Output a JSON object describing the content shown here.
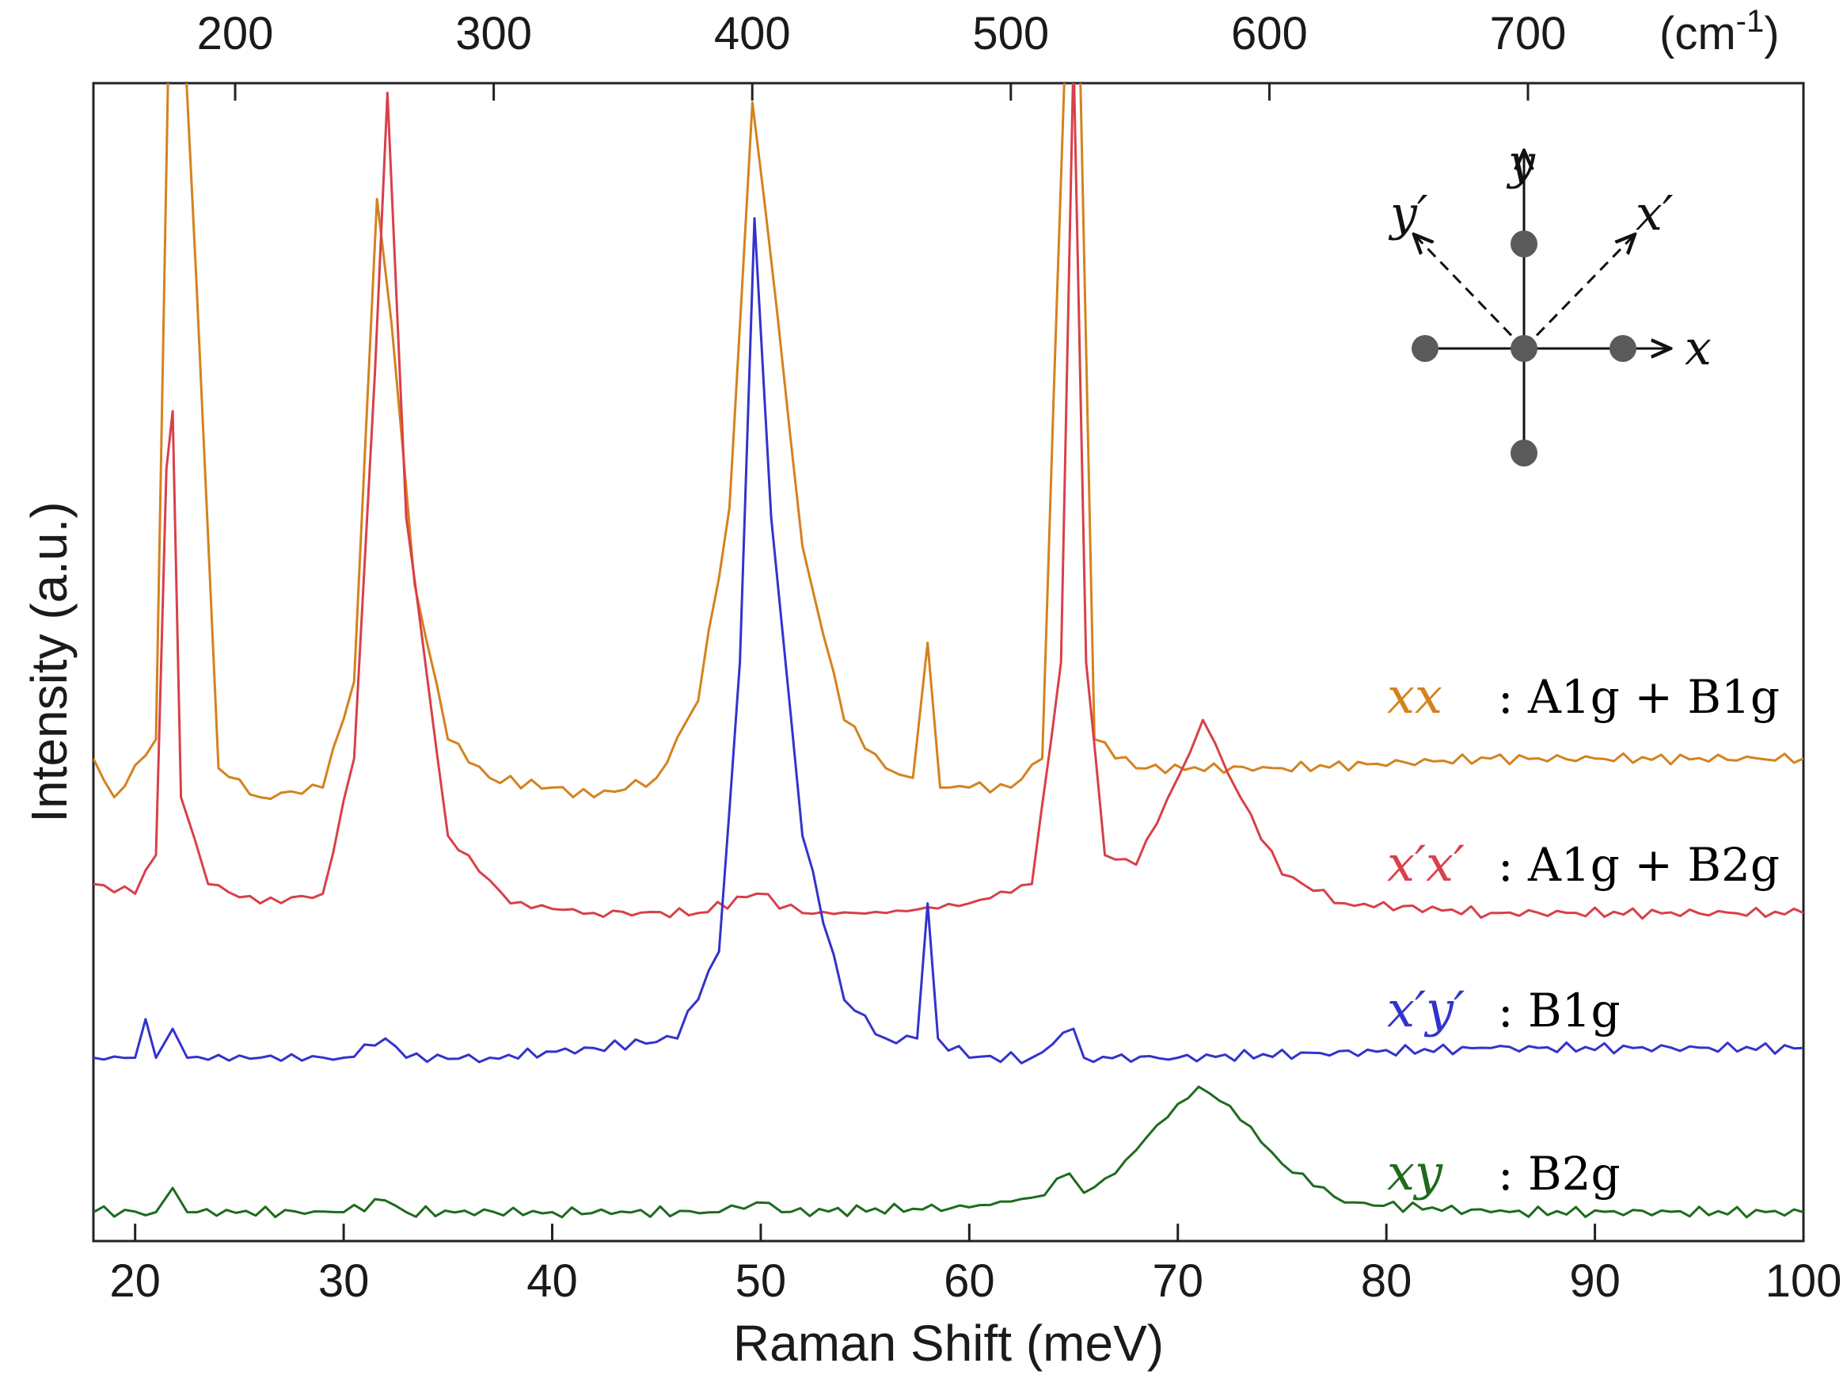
{
  "chart_data": {
    "type": "line",
    "xlabel": "Raman Shift (meV)",
    "ylabel": "Intensity (a.u.)",
    "xlim": [
      18,
      100
    ],
    "ylim": [
      0,
      12
    ],
    "x_ticks": [
      20,
      30,
      40,
      50,
      60,
      70,
      80,
      90,
      100
    ],
    "top_axis": {
      "unit_label": "(cm",
      "unit_exp": "-1",
      "unit_close": ")",
      "ticks": [
        200,
        300,
        400,
        500,
        600,
        700
      ],
      "conversion_mev_per_cm": 0.123984
    },
    "series": [
      {
        "id": "xx",
        "label_math": "xx",
        "symmetry": ": A1g + B1g",
        "color": "#D4821E",
        "baseline": 4.8,
        "x": [
          18,
          19,
          21,
          21.6,
          22.4,
          24,
          26,
          29,
          30.5,
          31.6,
          32.3,
          33.4,
          35,
          37,
          40,
          42,
          45,
          47,
          48.5,
          49.6,
          50.8,
          52,
          54,
          56,
          57.3,
          58,
          58.6,
          60,
          62,
          63.5,
          64.6,
          65.3,
          66,
          68,
          75,
          85,
          100
        ],
        "y": [
          5.0,
          4.6,
          5.2,
          12.5,
          12.5,
          4.9,
          4.6,
          4.7,
          5.8,
          10.8,
          9.5,
          6.8,
          5.2,
          4.8,
          4.7,
          4.6,
          4.8,
          5.6,
          7.6,
          11.8,
          9.6,
          7.2,
          5.4,
          4.9,
          4.8,
          6.2,
          4.7,
          4.7,
          4.7,
          5.0,
          12.5,
          12.5,
          5.2,
          4.9,
          4.9,
          5.0,
          5.0
        ]
      },
      {
        "id": "xpxp",
        "label_math": "x′x′",
        "symmetry": ": A1g + B2g",
        "color": "#D8404A",
        "baseline": 3.5,
        "x": [
          18,
          20,
          21,
          21.5,
          21.8,
          22.2,
          23.5,
          26,
          29,
          30.5,
          31.5,
          32.1,
          33,
          35,
          38,
          42,
          47,
          49.8,
          52,
          56,
          60,
          63,
          64.4,
          65,
          65.6,
          66.5,
          68,
          70,
          71.2,
          73,
          75,
          78,
          85,
          100
        ],
        "y": [
          3.7,
          3.6,
          4.0,
          8.0,
          8.6,
          4.6,
          3.7,
          3.5,
          3.6,
          5.0,
          9.0,
          11.9,
          7.5,
          4.2,
          3.5,
          3.4,
          3.4,
          3.6,
          3.4,
          3.4,
          3.5,
          3.7,
          6.0,
          12.5,
          6.0,
          4.0,
          3.9,
          4.8,
          5.4,
          4.6,
          3.8,
          3.5,
          3.4,
          3.4
        ]
      },
      {
        "id": "xpyp",
        "label_math": "x′y′",
        "symmetry": ": B1g",
        "color": "#3333CC",
        "baseline": 1.9,
        "x": [
          18,
          20,
          20.5,
          21,
          21.8,
          22.5,
          26,
          30,
          32,
          33,
          37,
          42,
          46,
          48,
          49,
          49.7,
          50.5,
          52,
          54,
          56,
          57.5,
          58,
          58.5,
          60,
          63,
          65,
          65.5,
          70,
          85,
          100
        ],
        "y": [
          1.9,
          1.9,
          2.3,
          1.9,
          2.2,
          1.9,
          1.9,
          1.9,
          2.1,
          1.9,
          1.9,
          2.0,
          2.1,
          3.0,
          6.0,
          10.6,
          7.5,
          4.2,
          2.5,
          2.1,
          2.1,
          3.5,
          2.1,
          1.9,
          1.9,
          2.2,
          1.9,
          1.9,
          2.0,
          2.0
        ]
      },
      {
        "id": "xy",
        "label_math": "xy",
        "symmetry": ": B2g",
        "color": "#1E6B1E",
        "baseline": 0.3,
        "x": [
          18,
          21,
          21.8,
          22.5,
          30,
          32,
          33,
          40,
          48,
          49.8,
          51,
          60,
          63,
          64.8,
          65.5,
          67,
          69,
          71,
          72.5,
          75,
          78,
          85,
          100
        ],
        "y": [
          0.3,
          0.3,
          0.55,
          0.3,
          0.3,
          0.42,
          0.3,
          0.3,
          0.3,
          0.4,
          0.3,
          0.35,
          0.45,
          0.7,
          0.5,
          0.7,
          1.2,
          1.6,
          1.4,
          0.8,
          0.4,
          0.3,
          0.3
        ]
      }
    ],
    "inset": {
      "title": "atom-lattice schematic",
      "axes": [
        "x",
        "y",
        "x′",
        "y′"
      ]
    }
  }
}
